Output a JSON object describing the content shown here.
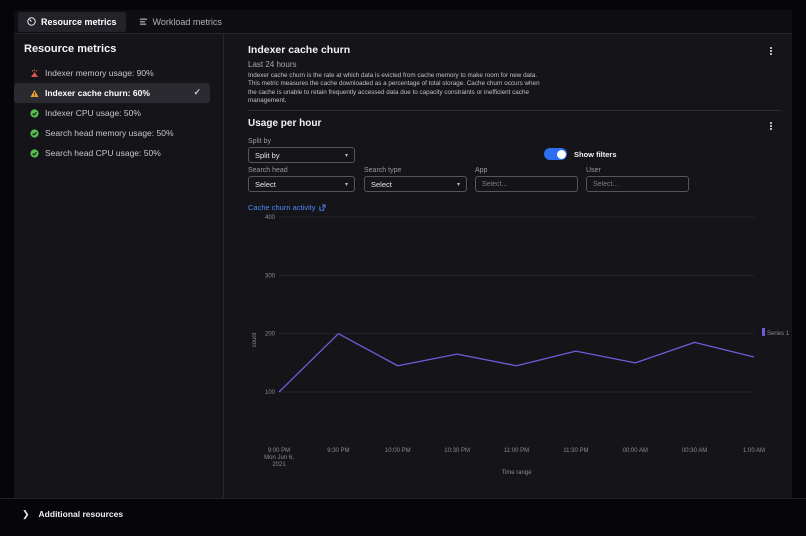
{
  "tabs": [
    {
      "label": "Resource metrics",
      "icon": "gauge-icon",
      "active": true
    },
    {
      "label": "Workload metrics",
      "icon": "workload-icon",
      "active": false
    }
  ],
  "sidebar": {
    "title": "Resource metrics",
    "items": [
      {
        "label": "Indexer memory usage: 90%",
        "status": "critical",
        "selected": false
      },
      {
        "label": "Indexer cache churn: 60%",
        "status": "warning",
        "selected": true
      },
      {
        "label": "Indexer CPU usage: 50%",
        "status": "ok",
        "selected": false
      },
      {
        "label": "Search head memory usage: 50%",
        "status": "ok",
        "selected": false
      },
      {
        "label": "Search head CPU usage: 50%",
        "status": "ok",
        "selected": false
      }
    ]
  },
  "panel": {
    "title": "Indexer cache churn",
    "timeframe": "Last 24 hours",
    "description": "Indexer cache churn is the rate at which data is evicted from cache memory to make room for new data. This metric measures the cache downloaded as a percentage of total storage. Cache churn occurs when the cache is unable to retain frequently accessed data due to capacity constraints or inefficient cache management."
  },
  "usage": {
    "title": "Usage per hour",
    "split_by_label": "Split by",
    "split_by_value": "Split by",
    "show_filters_label": "Show filters",
    "filters": [
      {
        "label": "Search head",
        "type": "select",
        "value": "Select"
      },
      {
        "label": "Search type",
        "type": "select",
        "value": "Select"
      },
      {
        "label": "App",
        "type": "input",
        "placeholder": "Select..."
      },
      {
        "label": "User",
        "type": "input",
        "placeholder": "Select..."
      }
    ],
    "chart_link": "Cache churn activity"
  },
  "chart_data": {
    "type": "line",
    "title": "Cache churn activity",
    "x": [
      "9:00 PM\nMon Jun 6,\n2021",
      "9:30 PM",
      "10:00 PM",
      "10:30 PM",
      "11:00 PM",
      "11:30 PM",
      "00:00 AM",
      "00:30 AM",
      "1:00 AM"
    ],
    "series": [
      {
        "name": "Series 1",
        "color": "#6a5ed9",
        "values": [
          100,
          200,
          145,
          165,
          145,
          170,
          150,
          185,
          160
        ]
      }
    ],
    "xlabel": "Time range",
    "ylabel": "count",
    "ylim": [
      100,
      400
    ],
    "yticks": [
      100,
      200,
      300,
      400
    ],
    "grid": true,
    "legend_position": "right"
  },
  "footer": {
    "label": "Additional resources"
  },
  "icons": {
    "menu": "kebab-vertical-icon",
    "external_link": "external-link-icon",
    "selected_check": "check-icon",
    "select_chevron": "chevron-down-icon",
    "footer_chevron": "chevron-right-icon"
  },
  "colors": {
    "accent_blue": "#2e6ff2",
    "link_blue": "#4b8cf5",
    "line_purple": "#6a5ed9",
    "critical_red": "#d95454",
    "warning_orange": "#efa12e",
    "ok_green": "#57bd4f",
    "background": "#151419"
  }
}
